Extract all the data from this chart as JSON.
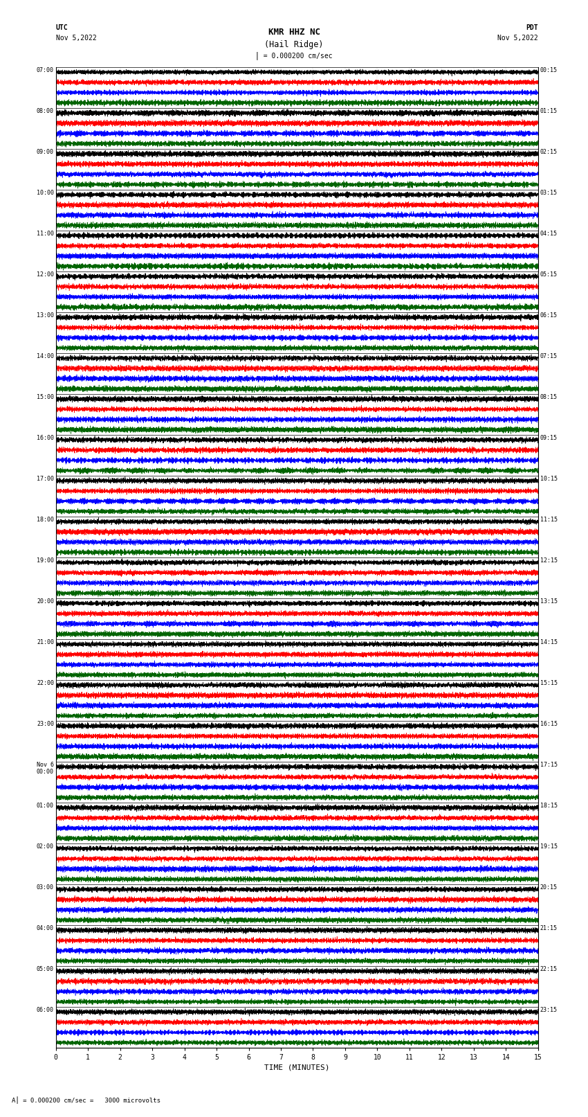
{
  "title_line1": "KMR HHZ NC",
  "title_line2": "(Hail Ridge)",
  "scale_text": "= 0.000200 cm/sec",
  "footer_text": "= 0.000200 cm/sec =   3000 microvolts",
  "utc_label": "UTC",
  "utc_date": "Nov 5,2022",
  "pdt_label": "PDT",
  "pdt_date": "Nov 5,2022",
  "xlabel": "TIME (MINUTES)",
  "left_times": [
    "07:00",
    "08:00",
    "09:00",
    "10:00",
    "11:00",
    "12:00",
    "13:00",
    "14:00",
    "15:00",
    "16:00",
    "17:00",
    "18:00",
    "19:00",
    "20:00",
    "21:00",
    "22:00",
    "23:00",
    "Nov 6\n00:00",
    "01:00",
    "02:00",
    "03:00",
    "04:00",
    "05:00",
    "06:00"
  ],
  "right_times": [
    "00:15",
    "01:15",
    "02:15",
    "03:15",
    "04:15",
    "05:15",
    "06:15",
    "07:15",
    "08:15",
    "09:15",
    "10:15",
    "11:15",
    "12:15",
    "13:15",
    "14:15",
    "15:15",
    "16:15",
    "17:15",
    "18:15",
    "19:15",
    "20:15",
    "21:15",
    "22:15",
    "23:15"
  ],
  "num_rows": 24,
  "traces_per_row": 4,
  "trace_colors": [
    "#000000",
    "#FF0000",
    "#0000FF",
    "#006400"
  ],
  "separator_color": "#000000",
  "xlim": [
    0,
    15
  ],
  "xticks": [
    0,
    1,
    2,
    3,
    4,
    5,
    6,
    7,
    8,
    9,
    10,
    11,
    12,
    13,
    14,
    15
  ],
  "bg_color": "#FFFFFF",
  "seed": 42,
  "amplitude_scale": 0.42,
  "noise_freq_base": 120,
  "n_points": 8000
}
